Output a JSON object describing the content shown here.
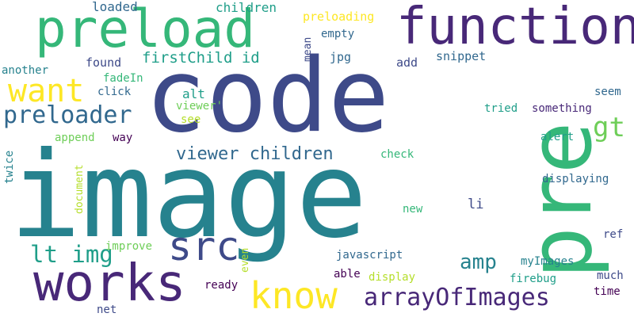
{
  "words": {
    "code": "code",
    "image": "image",
    "pre": "pre",
    "function": "function",
    "preload": "preload",
    "works": "works",
    "src": "src",
    "know": "know",
    "want": "want",
    "preloader": "preloader",
    "arrayOfImages": "arrayOfImages",
    "amp": "amp",
    "gt": "gt",
    "lt_img": "lt img",
    "viewer_children": "viewer children",
    "firstChild_id": "firstChild id",
    "loaded": "loaded",
    "children": "children",
    "preloading": "preloading",
    "mean": "mean",
    "empty": "empty",
    "jpg": "jpg",
    "snippet": "snippet",
    "add": "add",
    "found": "found",
    "another": "another",
    "fadeIn": "fadeIn",
    "click": "click",
    "alt": "alt",
    "viewer_q": "viewer'",
    "see": "see",
    "seem": "seem",
    "tried": "tried",
    "something": "something",
    "append": "append",
    "way": "way",
    "alert": "alert",
    "check": "check",
    "twice": "twice",
    "document": "document",
    "displaying": "displaying",
    "new": "new",
    "li": "li",
    "ref": "ref",
    "improve": "improve",
    "even": "even",
    "javascript": "javascript",
    "myImages": "myImages",
    "much": "much",
    "able": "able",
    "display": "display",
    "firebug": "firebug",
    "ready": "ready",
    "time": "time",
    "net": "net"
  },
  "palette": {
    "dark_purple": "#440154",
    "indigo": "#482878",
    "blue_purple": "#3e4a89",
    "steel_blue": "#31688e",
    "teal_blue": "#26828e",
    "teal": "#1f9e89",
    "sea_green": "#35b779",
    "green": "#6ece58",
    "lime": "#b5de2b",
    "yellow": "#fde725"
  }
}
